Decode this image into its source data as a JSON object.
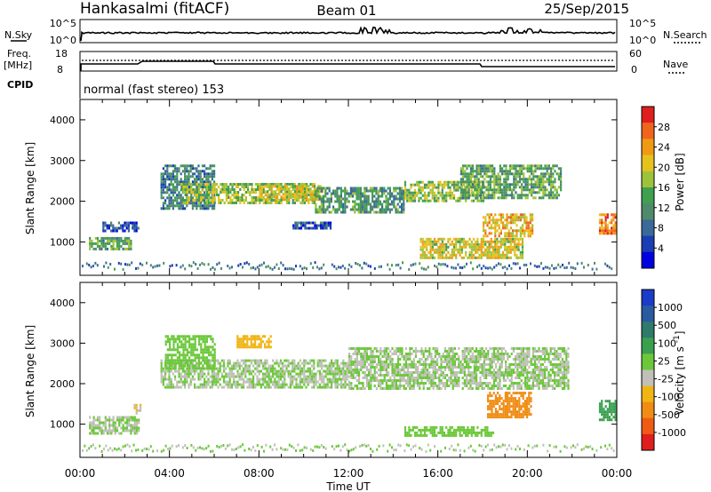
{
  "header": {
    "station": "Hankasalmi (fitACF)",
    "beam": "Beam 01",
    "date": "25/Sep/2015"
  },
  "panels": {
    "nsky": {
      "label": "N.Sky",
      "ytick_top": "10^5",
      "ytick_bottom": "10^0",
      "right_label": "N.Search",
      "right_tick_top": "10^5",
      "right_tick_bottom": "10^0"
    },
    "freq": {
      "label_line1": "Freq.",
      "label_line2": "[MHz]",
      "ytick_top": "18",
      "ytick_bottom": "8",
      "right_label": "Nave",
      "right_tick_top": "60",
      "right_tick_bottom": "0"
    },
    "cpid": {
      "label": "CPID",
      "mode": "normal (fast stereo) 153"
    }
  },
  "xaxis": {
    "label": "Time UT",
    "ticks": [
      "00:00",
      "04:00",
      "08:00",
      "12:00",
      "16:00",
      "20:00",
      "00:00"
    ]
  },
  "chart_data": [
    {
      "type": "heatmap",
      "title": "",
      "xlabel": "Time UT",
      "ylabel": "Slant Range [km]",
      "xlim": [
        0,
        24
      ],
      "ylim": [
        180,
        4500
      ],
      "yticks": [
        "1000",
        "2000",
        "3000",
        "4000"
      ],
      "colorbar": {
        "label": "Power [dB]",
        "ticks": [
          "4",
          "8",
          "12",
          "16",
          "20",
          "24",
          "28"
        ],
        "colors": [
          "#0000e0",
          "#1a3cb4",
          "#3a6a9a",
          "#4f8a6a",
          "#3fa050",
          "#9ec33a",
          "#e6c21e",
          "#f09a14",
          "#f0641e",
          "#e01e1e"
        ],
        "range": [
          0,
          32
        ]
      },
      "features": [
        {
          "t0": 0.4,
          "t1": 2.3,
          "r0": 820,
          "r1": 1120,
          "value": 14
        },
        {
          "t0": 1.0,
          "t1": 2.6,
          "r0": 1300,
          "r1": 1500,
          "value": 6
        },
        {
          "t0": 3.6,
          "t1": 6.0,
          "r0": 1800,
          "r1": 2900,
          "value": 10
        },
        {
          "t0": 4.5,
          "t1": 10.5,
          "r0": 1950,
          "r1": 2450,
          "value": 17
        },
        {
          "t0": 8.0,
          "t1": 10.8,
          "r0": 2050,
          "r1": 2400,
          "value": 20
        },
        {
          "t0": 10.5,
          "t1": 14.5,
          "r0": 1700,
          "r1": 2350,
          "value": 12
        },
        {
          "t0": 14.5,
          "t1": 18.0,
          "r0": 2000,
          "r1": 2500,
          "value": 17
        },
        {
          "t0": 17.0,
          "t1": 21.5,
          "r0": 2100,
          "r1": 2900,
          "value": 14
        },
        {
          "t0": 15.2,
          "t1": 19.8,
          "r0": 600,
          "r1": 1100,
          "value": 20
        },
        {
          "t0": 18.0,
          "t1": 20.2,
          "r0": 1150,
          "r1": 1700,
          "value": 22
        },
        {
          "t0": 23.2,
          "t1": 23.9,
          "r0": 1200,
          "r1": 1700,
          "value": 25
        },
        {
          "t0": 9.5,
          "t1": 11.2,
          "r0": 1350,
          "r1": 1500,
          "value": 6
        }
      ]
    },
    {
      "type": "heatmap",
      "title": "",
      "xlabel": "Time UT",
      "ylabel": "Slant Range [km]",
      "xlim": [
        0,
        24
      ],
      "ylim": [
        180,
        4500
      ],
      "yticks": [
        "1000",
        "2000",
        "3000",
        "4000"
      ],
      "colorbar": {
        "label": "Velocity [m s^-1]",
        "ticks": [
          "1000",
          "500",
          "100",
          "25",
          "-25",
          "-100",
          "-500",
          "-1000"
        ],
        "colors": [
          "#1a3cc8",
          "#2a5aa0",
          "#2f7a6a",
          "#3aa050",
          "#6cc83a",
          "#c0c0b8",
          "#f0b414",
          "#f08c14",
          "#f05a14",
          "#e01e1e"
        ],
        "range": [
          -1000,
          1000
        ]
      },
      "features": [
        {
          "t0": 0.4,
          "t1": 2.6,
          "r0": 800,
          "r1": 1200,
          "value": 0
        },
        {
          "t0": 3.6,
          "t1": 12.0,
          "r0": 1900,
          "r1": 2600,
          "value": 0
        },
        {
          "t0": 3.8,
          "t1": 6.0,
          "r0": 2400,
          "r1": 3200,
          "value": 60
        },
        {
          "t0": 7.0,
          "t1": 8.5,
          "r0": 2900,
          "r1": 3200,
          "value": -300
        },
        {
          "t0": 12.0,
          "t1": 21.8,
          "r0": 1900,
          "r1": 2900,
          "value": 0
        },
        {
          "t0": 14.5,
          "t1": 18.5,
          "r0": 750,
          "r1": 950,
          "value": 60
        },
        {
          "t0": 18.2,
          "t1": 20.2,
          "r0": 1200,
          "r1": 1800,
          "value": -500
        },
        {
          "t0": 23.2,
          "t1": 23.9,
          "r0": 1100,
          "r1": 1600,
          "value": 300
        },
        {
          "t0": 2.4,
          "t1": 2.7,
          "r0": 1300,
          "r1": 1500,
          "value": -200
        }
      ]
    }
  ]
}
